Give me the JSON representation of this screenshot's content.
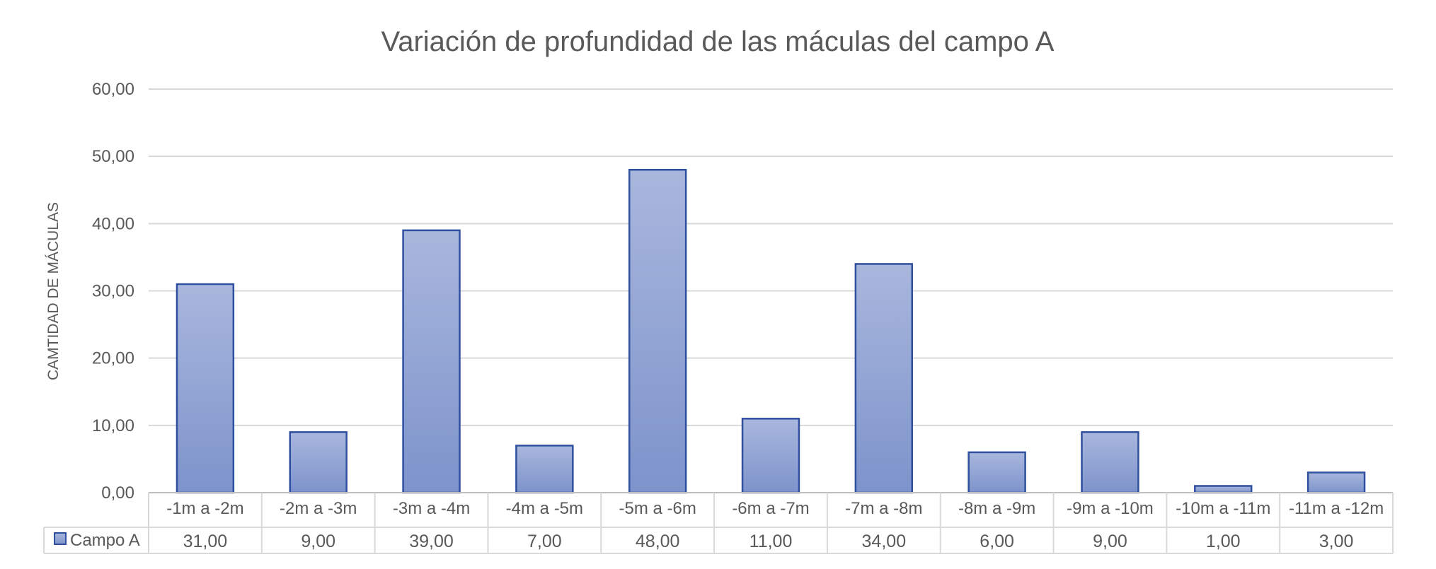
{
  "chart_data": {
    "type": "bar",
    "title": "Variación  de  profundidad  de las  máculas  del  campo  A",
    "ylabel": "CAMTIDAD DE MÁCULAS",
    "xlabel": "",
    "ylim": [
      0,
      60
    ],
    "yticks": [
      "0,00",
      "10,00",
      "20,00",
      "30,00",
      "40,00",
      "50,00",
      "60,00"
    ],
    "categories": [
      "-1m a -2m",
      "-2m a -3m",
      "-3m a -4m",
      "-4m a -5m",
      "-5m a -6m",
      "-6m a -7m",
      "-7m a -8m",
      "-8m a -9m",
      "-9m a -10m",
      "-10m a -11m",
      "-11m a -12m"
    ],
    "series": [
      {
        "name": "Campo A",
        "values": [
          31,
          9,
          39,
          7,
          48,
          11,
          34,
          6,
          9,
          1,
          3
        ],
        "labels": [
          "31,00",
          "9,00",
          "39,00",
          "7,00",
          "48,00",
          "11,00",
          "34,00",
          "6,00",
          "9,00",
          "1,00",
          "3,00"
        ],
        "color": "#8a9fd1",
        "border": "#2f4f9f"
      }
    ],
    "grid": true,
    "legend": "data-table-left"
  }
}
